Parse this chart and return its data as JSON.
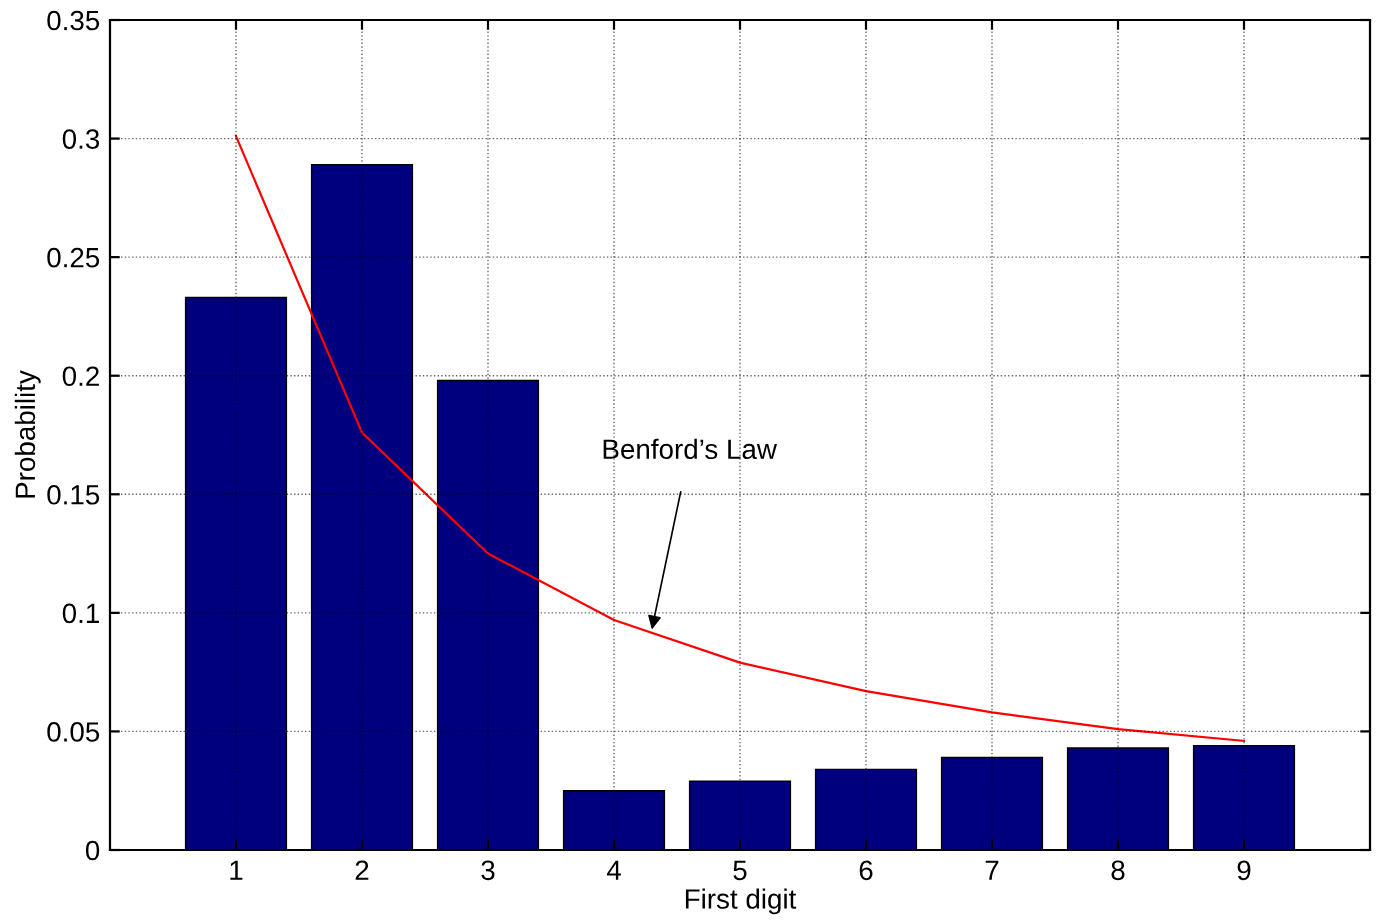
{
  "chart_data": {
    "type": "bar",
    "xlabel": "First digit",
    "ylabel": "Probability",
    "x": [
      1,
      2,
      3,
      4,
      5,
      6,
      7,
      8,
      9
    ],
    "series": [
      {
        "color": "#00007f",
        "values": [
          0.233,
          0.289,
          0.198,
          0.025,
          0.029,
          0.034,
          0.039,
          0.043,
          0.044
        ]
      },
      {
        "type": "line",
        "color": "#ff0000",
        "values": [
          0.301,
          0.176,
          0.125,
          0.097,
          0.079,
          0.067,
          0.058,
          0.051,
          0.046
        ]
      }
    ],
    "xlim": [
      0,
      10
    ],
    "xticks": [
      1,
      2,
      3,
      4,
      5,
      6,
      7,
      8,
      9
    ],
    "ylim": [
      0,
      0.35
    ],
    "yticks": [
      0,
      0.05,
      0.1,
      0.15,
      0.2,
      0.25,
      0.3,
      0.35
    ],
    "grid": true,
    "annotations": [
      {
        "text": "Benford’s Law",
        "x": 4.3,
        "y": 0.093
      }
    ]
  }
}
